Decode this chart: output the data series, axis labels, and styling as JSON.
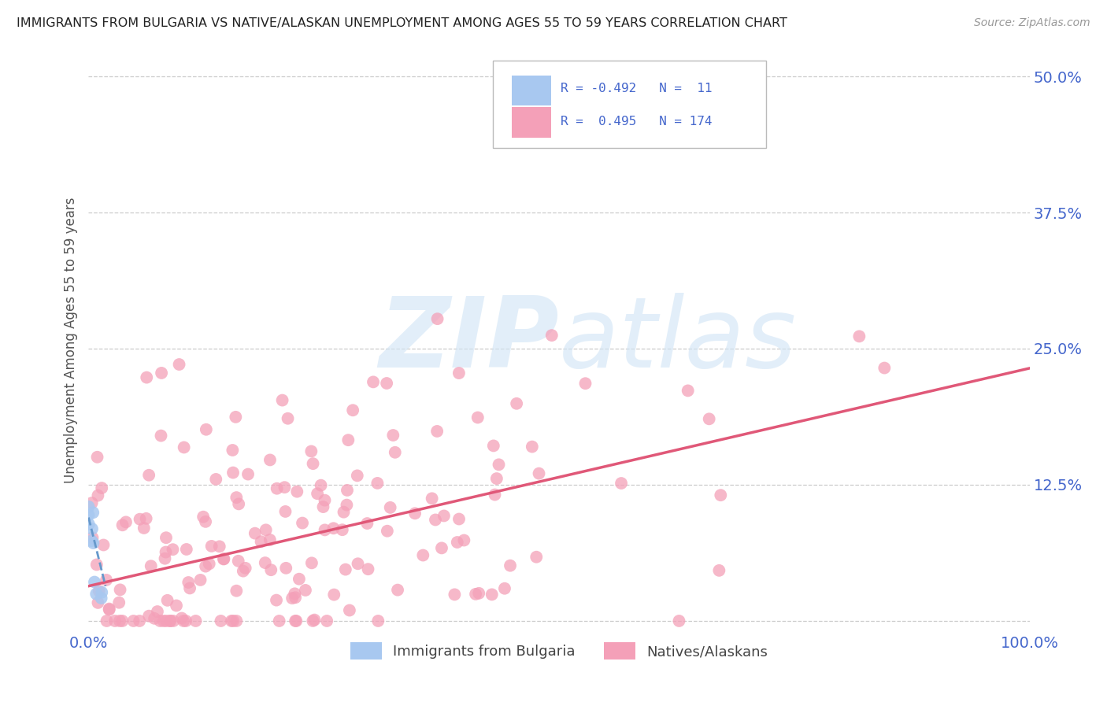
{
  "title": "IMMIGRANTS FROM BULGARIA VS NATIVE/ALASKAN UNEMPLOYMENT AMONG AGES 55 TO 59 YEARS CORRELATION CHART",
  "source": "Source: ZipAtlas.com",
  "ylabel": "Unemployment Among Ages 55 to 59 years",
  "xlim": [
    0.0,
    1.0
  ],
  "ylim": [
    -0.01,
    0.525
  ],
  "xticks": [
    0.0,
    0.25,
    0.5,
    0.75,
    1.0
  ],
  "xticklabels": [
    "0.0%",
    "",
    "",
    "",
    "100.0%"
  ],
  "yticks": [
    0.0,
    0.125,
    0.25,
    0.375,
    0.5
  ],
  "yticklabels": [
    "",
    "12.5%",
    "25.0%",
    "37.5%",
    "50.0%"
  ],
  "bg_color": "#ffffff",
  "grid_color": "#cccccc",
  "blue_color": "#a8c8f0",
  "pink_color": "#f4a0b8",
  "pink_line_color": "#e05878",
  "blue_line_color": "#6699cc",
  "watermark_color": "#d0e4f5",
  "tick_color": "#4466cc",
  "legend_R_blue": "-0.492",
  "legend_N_blue": "11",
  "legend_R_pink": "0.495",
  "legend_N_pink": "174",
  "legend_label_blue": "Immigrants from Bulgaria",
  "legend_label_pink": "Natives/Alaskans",
  "pink_scatter_seed": 42,
  "blue_scatter_seed": 7,
  "pink_trend_y_start": 0.032,
  "pink_trend_y_end": 0.232,
  "blue_trend_y_start": 0.095,
  "blue_trend_y_end": 0.032
}
